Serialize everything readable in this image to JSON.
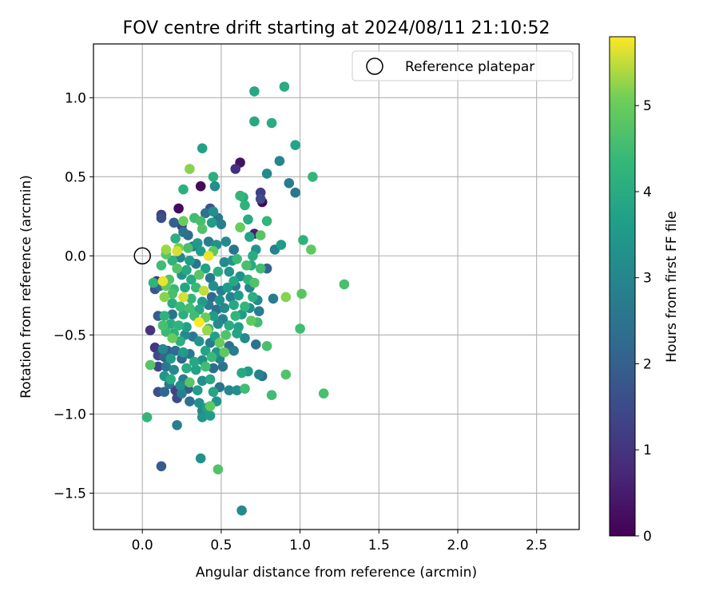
{
  "chart_data": {
    "type": "scatter",
    "title": "FOV centre drift starting at 2024/08/11 21:10:52",
    "xlabel": "Angular distance from reference (arcmin)",
    "ylabel": "Rotation from reference (arcmin)",
    "xlim": [
      -0.31,
      2.77
    ],
    "ylim": [
      -1.73,
      1.34
    ],
    "xticks": [
      0.0,
      0.5,
      1.0,
      1.5,
      2.0,
      2.5
    ],
    "xtick_labels": [
      "0.0",
      "0.5",
      "1.0",
      "1.5",
      "2.0",
      "2.5"
    ],
    "yticks": [
      -1.5,
      -1.0,
      -0.5,
      0.0,
      0.5,
      1.0
    ],
    "ytick_labels": [
      "−1.5",
      "−1.0",
      "−0.5",
      "0.0",
      "0.5",
      "1.0"
    ],
    "grid": true,
    "legend": {
      "placement": "top-right",
      "entries": [
        "Reference platepar"
      ]
    },
    "reference_point": {
      "x": 0.0,
      "y": 0.0,
      "label": "Reference platepar"
    },
    "colorbar": {
      "label": "Hours from first FF file",
      "colormap": "viridis",
      "range": [
        0,
        5.8
      ],
      "ticks": [
        0,
        1,
        2,
        3,
        4,
        5
      ],
      "tick_labels": [
        "0",
        "1",
        "2",
        "3",
        "4",
        "5"
      ]
    },
    "points": [
      [
        0.71,
        1.04,
        3.9
      ],
      [
        0.9,
        1.07,
        4.0
      ],
      [
        0.71,
        0.85,
        3.9
      ],
      [
        0.82,
        0.84,
        4.0
      ],
      [
        0.97,
        0.7,
        3.8
      ],
      [
        0.38,
        0.68,
        3.7
      ],
      [
        0.3,
        0.55,
        5.2
      ],
      [
        0.62,
        0.59,
        0.3
      ],
      [
        0.59,
        0.55,
        0.9
      ],
      [
        0.87,
        0.6,
        3.0
      ],
      [
        0.79,
        0.52,
        3.1
      ],
      [
        0.93,
        0.46,
        2.7
      ],
      [
        1.08,
        0.5,
        4.3
      ],
      [
        0.45,
        0.5,
        4.1
      ],
      [
        0.26,
        0.42,
        4.1
      ],
      [
        0.37,
        0.44,
        0.2
      ],
      [
        0.46,
        0.44,
        3.2
      ],
      [
        0.97,
        0.4,
        2.6
      ],
      [
        0.75,
        0.4,
        1.2
      ],
      [
        0.76,
        0.34,
        0.1
      ],
      [
        0.62,
        0.38,
        4.3
      ],
      [
        0.64,
        0.37,
        4.0
      ],
      [
        0.65,
        0.32,
        4.2
      ],
      [
        0.75,
        0.36,
        1.5
      ],
      [
        0.43,
        0.3,
        1.7
      ],
      [
        0.45,
        0.28,
        3.3
      ],
      [
        0.23,
        0.3,
        0.2
      ],
      [
        0.12,
        0.26,
        1.2
      ],
      [
        0.12,
        0.24,
        1.6
      ],
      [
        0.4,
        0.27,
        2.4
      ],
      [
        0.48,
        0.24,
        2.6
      ],
      [
        0.44,
        0.21,
        3.6
      ],
      [
        0.33,
        0.24,
        4.5
      ],
      [
        0.37,
        0.22,
        4.6
      ],
      [
        0.26,
        0.22,
        5.0
      ],
      [
        0.2,
        0.21,
        2.0
      ],
      [
        0.25,
        0.19,
        1.4
      ],
      [
        0.38,
        0.17,
        4.7
      ],
      [
        0.5,
        0.2,
        2.8
      ],
      [
        0.62,
        0.18,
        5.0
      ],
      [
        0.67,
        0.23,
        4.0
      ],
      [
        0.79,
        0.22,
        4.3
      ],
      [
        0.71,
        0.14,
        0.5
      ],
      [
        0.75,
        0.13,
        4.8
      ],
      [
        0.68,
        0.12,
        3.8
      ],
      [
        0.26,
        0.15,
        2.5
      ],
      [
        0.29,
        0.13,
        2.3
      ],
      [
        0.21,
        0.11,
        4.1
      ],
      [
        0.35,
        0.08,
        3.5
      ],
      [
        0.42,
        0.09,
        2.8
      ],
      [
        0.53,
        0.09,
        3.1
      ],
      [
        0.47,
        0.07,
        3.3
      ],
      [
        1.02,
        0.1,
        4.2
      ],
      [
        0.84,
        0.04,
        2.9
      ],
      [
        0.88,
        0.07,
        3.6
      ],
      [
        1.07,
        0.04,
        4.9
      ],
      [
        0.23,
        0.05,
        5.1
      ],
      [
        0.29,
        0.05,
        4.6
      ],
      [
        0.32,
        0.06,
        2.8
      ],
      [
        0.37,
        0.03,
        3.6
      ],
      [
        0.15,
        0.04,
        5.3
      ],
      [
        0.15,
        0.01,
        4.8
      ],
      [
        0.22,
        0.03,
        5.6
      ],
      [
        0.42,
        0.0,
        5.7
      ],
      [
        0.45,
        0.03,
        4.9
      ],
      [
        0.58,
        0.04,
        2.5
      ],
      [
        0.72,
        0.04,
        3.4
      ],
      [
        0.7,
        0.0,
        4.0
      ],
      [
        0.6,
        -0.02,
        4.4
      ],
      [
        0.57,
        -0.03,
        3.4
      ],
      [
        0.19,
        -0.03,
        4.2
      ],
      [
        0.24,
        -0.01,
        3.0
      ],
      [
        0.3,
        -0.03,
        3.6
      ],
      [
        0.34,
        -0.05,
        2.6
      ],
      [
        0.52,
        -0.04,
        3.1
      ],
      [
        0.66,
        -0.06,
        4.6
      ],
      [
        0.69,
        -0.06,
        4.0
      ],
      [
        0.75,
        -0.08,
        4.5
      ],
      [
        0.79,
        -0.08,
        2.1
      ],
      [
        0.12,
        -0.06,
        4.5
      ],
      [
        0.22,
        -0.08,
        4.7
      ],
      [
        0.28,
        -0.09,
        3.9
      ],
      [
        0.4,
        -0.08,
        3.7
      ],
      [
        0.48,
        -0.1,
        4.1
      ],
      [
        0.55,
        -0.1,
        3.4
      ],
      [
        0.09,
        -0.16,
        1.0
      ],
      [
        0.07,
        -0.17,
        4.2
      ],
      [
        0.13,
        -0.16,
        5.7
      ],
      [
        0.17,
        -0.15,
        4.7
      ],
      [
        0.25,
        -0.12,
        3.3
      ],
      [
        0.31,
        -0.15,
        4.0
      ],
      [
        0.36,
        -0.12,
        4.8
      ],
      [
        0.43,
        -0.14,
        2.6
      ],
      [
        0.58,
        -0.16,
        3.9
      ],
      [
        0.62,
        -0.13,
        3.3
      ],
      [
        0.67,
        -0.15,
        4.2
      ],
      [
        0.71,
        -0.17,
        4.7
      ],
      [
        0.08,
        -0.21,
        1.8
      ],
      [
        0.11,
        -0.19,
        2.3
      ],
      [
        0.15,
        -0.19,
        4.9
      ],
      [
        0.2,
        -0.21,
        4.4
      ],
      [
        0.27,
        -0.2,
        3.8
      ],
      [
        0.34,
        -0.2,
        4.4
      ],
      [
        0.39,
        -0.22,
        5.5
      ],
      [
        0.45,
        -0.19,
        3.2
      ],
      [
        0.5,
        -0.22,
        2.8
      ],
      [
        0.54,
        -0.2,
        3.6
      ],
      [
        0.59,
        -0.19,
        2.7
      ],
      [
        0.68,
        -0.2,
        3.0
      ],
      [
        1.28,
        -0.18,
        4.6
      ],
      [
        0.14,
        -0.26,
        5.2
      ],
      [
        0.19,
        -0.24,
        4.6
      ],
      [
        0.26,
        -0.26,
        5.6
      ],
      [
        0.31,
        -0.27,
        4.3
      ],
      [
        0.38,
        -0.29,
        3.6
      ],
      [
        0.44,
        -0.26,
        2.2
      ],
      [
        0.49,
        -0.28,
        3.3
      ],
      [
        0.56,
        -0.26,
        2.9
      ],
      [
        0.61,
        -0.25,
        3.6
      ],
      [
        0.7,
        -0.26,
        4.1
      ],
      [
        0.73,
        -0.28,
        3.1
      ],
      [
        0.83,
        -0.27,
        2.7
      ],
      [
        0.91,
        -0.26,
        5.2
      ],
      [
        1.01,
        -0.24,
        4.8
      ],
      [
        0.19,
        -0.3,
        4.0
      ],
      [
        0.24,
        -0.32,
        4.4
      ],
      [
        0.3,
        -0.33,
        4.5
      ],
      [
        0.36,
        -0.34,
        3.9
      ],
      [
        0.42,
        -0.31,
        2.7
      ],
      [
        0.47,
        -0.34,
        2.4
      ],
      [
        0.52,
        -0.33,
        3.1
      ],
      [
        0.58,
        -0.31,
        3.9
      ],
      [
        0.65,
        -0.32,
        4.3
      ],
      [
        0.68,
        -0.33,
        3.2
      ],
      [
        0.1,
        -0.38,
        1.9
      ],
      [
        0.14,
        -0.38,
        4.2
      ],
      [
        0.19,
        -0.37,
        2.5
      ],
      [
        0.26,
        -0.37,
        4.1
      ],
      [
        0.33,
        -0.38,
        4.5
      ],
      [
        0.4,
        -0.39,
        5.0
      ],
      [
        0.45,
        -0.38,
        3.6
      ],
      [
        0.51,
        -0.4,
        2.9
      ],
      [
        0.59,
        -0.38,
        4.3
      ],
      [
        0.63,
        -0.37,
        3.6
      ],
      [
        0.74,
        -0.35,
        2.8
      ],
      [
        0.13,
        -0.44,
        4.6
      ],
      [
        0.18,
        -0.43,
        4.0
      ],
      [
        0.23,
        -0.44,
        4.2
      ],
      [
        0.28,
        -0.45,
        3.7
      ],
      [
        0.36,
        -0.42,
        5.8
      ],
      [
        0.42,
        -0.46,
        4.4
      ],
      [
        0.48,
        -0.43,
        3.1
      ],
      [
        0.55,
        -0.44,
        4.0
      ],
      [
        0.61,
        -0.45,
        3.7
      ],
      [
        0.69,
        -0.41,
        4.9
      ],
      [
        0.73,
        -0.42,
        4.5
      ],
      [
        1.0,
        -0.46,
        4.5
      ],
      [
        0.05,
        -0.47,
        1.0
      ],
      [
        0.15,
        -0.48,
        4.4
      ],
      [
        0.2,
        -0.49,
        4.1
      ],
      [
        0.27,
        -0.5,
        3.1
      ],
      [
        0.32,
        -0.51,
        2.6
      ],
      [
        0.41,
        -0.47,
        5.3
      ],
      [
        0.46,
        -0.51,
        3.7
      ],
      [
        0.53,
        -0.5,
        4.7
      ],
      [
        0.6,
        -0.49,
        3.8
      ],
      [
        0.65,
        -0.52,
        3.1
      ],
      [
        0.19,
        -0.52,
        5.0
      ],
      [
        0.24,
        -0.54,
        4.1
      ],
      [
        0.36,
        -0.54,
        3.4
      ],
      [
        0.43,
        -0.55,
        2.7
      ],
      [
        0.49,
        -0.55,
        5.0
      ],
      [
        0.55,
        -0.57,
        2.4
      ],
      [
        0.72,
        -0.56,
        2.5
      ],
      [
        0.79,
        -0.57,
        4.6
      ],
      [
        0.08,
        -0.58,
        1.0
      ],
      [
        0.13,
        -0.59,
        3.0
      ],
      [
        0.16,
        -0.6,
        2.0
      ],
      [
        0.21,
        -0.6,
        2.3
      ],
      [
        0.26,
        -0.61,
        3.6
      ],
      [
        0.3,
        -0.62,
        2.6
      ],
      [
        0.4,
        -0.6,
        3.8
      ],
      [
        0.47,
        -0.61,
        3.4
      ],
      [
        0.52,
        -0.61,
        4.9
      ],
      [
        0.58,
        -0.6,
        2.8
      ],
      [
        0.1,
        -0.63,
        1.5
      ],
      [
        0.14,
        -0.64,
        2.1
      ],
      [
        0.18,
        -0.65,
        3.6
      ],
      [
        0.25,
        -0.65,
        2.2
      ],
      [
        0.33,
        -0.67,
        3.9
      ],
      [
        0.38,
        -0.66,
        3.3
      ],
      [
        0.44,
        -0.64,
        4.4
      ],
      [
        0.49,
        -0.65,
        2.9
      ],
      [
        0.05,
        -0.69,
        4.8
      ],
      [
        0.1,
        -0.7,
        1.4
      ],
      [
        0.15,
        -0.7,
        2.6
      ],
      [
        0.2,
        -0.72,
        3.1
      ],
      [
        0.28,
        -0.71,
        4.0
      ],
      [
        0.34,
        -0.72,
        3.7
      ],
      [
        0.4,
        -0.7,
        4.5
      ],
      [
        0.45,
        -0.71,
        2.3
      ],
      [
        0.51,
        -0.7,
        2.5
      ],
      [
        0.63,
        -0.74,
        3.9
      ],
      [
        0.67,
        -0.73,
        3.6
      ],
      [
        0.74,
        -0.75,
        2.9
      ],
      [
        0.76,
        -0.76,
        2.4
      ],
      [
        0.91,
        -0.75,
        4.7
      ],
      [
        0.14,
        -0.76,
        3.4
      ],
      [
        0.18,
        -0.78,
        4.0
      ],
      [
        0.26,
        -0.78,
        2.7
      ],
      [
        0.3,
        -0.8,
        4.8
      ],
      [
        0.38,
        -0.79,
        3.2
      ],
      [
        0.43,
        -0.78,
        3.9
      ],
      [
        0.24,
        -0.82,
        3.3
      ],
      [
        0.17,
        -0.81,
        2.6
      ],
      [
        0.49,
        -0.83,
        2.5
      ],
      [
        0.55,
        -0.85,
        3.0
      ],
      [
        0.65,
        -0.84,
        4.5
      ],
      [
        0.1,
        -0.86,
        1.6
      ],
      [
        0.14,
        -0.86,
        2.2
      ],
      [
        0.21,
        -0.85,
        1.3
      ],
      [
        0.25,
        -0.87,
        2.8
      ],
      [
        0.29,
        -0.84,
        1.9
      ],
      [
        0.35,
        -0.85,
        3.6
      ],
      [
        0.45,
        -0.86,
        3.8
      ],
      [
        0.6,
        -0.85,
        3.2
      ],
      [
        0.82,
        -0.88,
        4.5
      ],
      [
        1.15,
        -0.87,
        4.6
      ],
      [
        0.22,
        -0.9,
        1.5
      ],
      [
        0.3,
        -0.92,
        2.4
      ],
      [
        0.36,
        -0.93,
        3.3
      ],
      [
        0.43,
        -0.95,
        4.9
      ],
      [
        0.47,
        -0.92,
        3.4
      ],
      [
        0.38,
        -0.98,
        3.1
      ],
      [
        0.41,
        -0.96,
        3.7
      ],
      [
        0.03,
        -1.02,
        4.3
      ],
      [
        0.38,
        -1.02,
        3.4
      ],
      [
        0.43,
        -1.01,
        3.6
      ],
      [
        0.22,
        -1.07,
        2.8
      ],
      [
        0.37,
        -1.28,
        3.3
      ],
      [
        0.48,
        -1.35,
        4.7
      ],
      [
        0.12,
        -1.33,
        1.9
      ],
      [
        0.63,
        -1.61,
        3.1
      ]
    ]
  }
}
